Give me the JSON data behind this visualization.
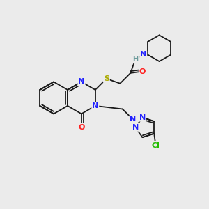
{
  "bg_color": "#ebebeb",
  "bond_color": "#1a1a1a",
  "atom_colors": {
    "N": "#2020ff",
    "O": "#ff2020",
    "S": "#aaaa00",
    "Cl": "#22bb00",
    "H": "#6a9a9a",
    "C": "#1a1a1a"
  },
  "font_size": 8.0,
  "bond_width": 1.3,
  "scale": 1.0
}
